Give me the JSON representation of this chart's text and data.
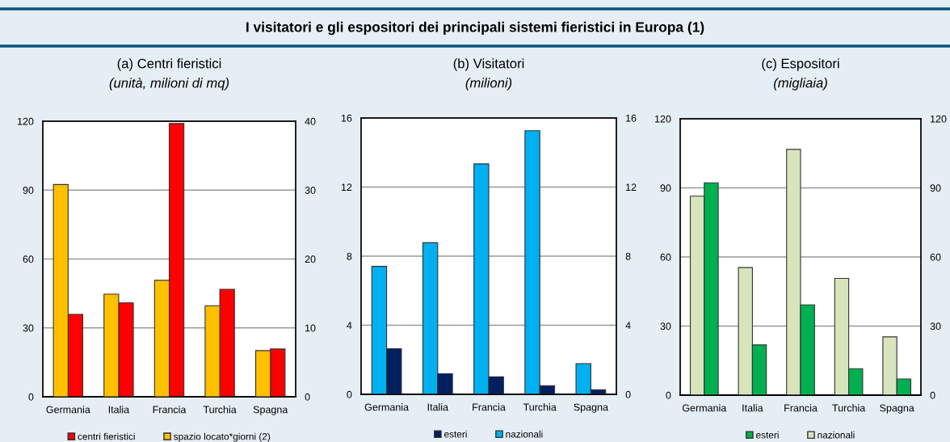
{
  "chart_data": [
    {
      "type": "other",
      "title": "I visitatori e gli espositori dei principali sistemi fieristici in Europa (1)"
    },
    {
      "type": "bar",
      "title": "(a) Centri fieristici",
      "subtitle": "(unità, milioni di mq)",
      "categories": [
        "Germania",
        "Italia",
        "Francia",
        "Turchia",
        "Spagna"
      ],
      "series": [
        {
          "name": "spazio locato*giorni (2)",
          "color": "#ffc000",
          "axis": "y2",
          "values": [
            30.8,
            14.9,
            16.9,
            13.2,
            6.7
          ]
        },
        {
          "name": "centri fieristici",
          "color": "#ff0000",
          "values": [
            35.9,
            40.9,
            119,
            46.8,
            20.8
          ]
        }
      ],
      "ylim": [
        0,
        120
      ],
      "yticks": [
        0,
        30,
        60,
        90,
        120
      ],
      "y2lim": [
        0,
        40
      ],
      "y2ticks": [
        0,
        10,
        20,
        30,
        40
      ],
      "grid": "y",
      "legend": "bottom"
    },
    {
      "type": "bar",
      "title": "(b) Visitatori",
      "subtitle": "(milioni)",
      "categories": [
        "Germania",
        "Italia",
        "Francia",
        "Turchia",
        "Spagna"
      ],
      "series": [
        {
          "name": "nazionali",
          "color": "#00b0f0",
          "values": [
            7.41,
            8.78,
            13.34,
            15.26,
            1.78
          ]
        },
        {
          "name": "esteri",
          "color": "#002060",
          "values": [
            2.64,
            1.19,
            1.01,
            0.5,
            0.27
          ]
        }
      ],
      "ylim": [
        0,
        16
      ],
      "yticks": [
        0,
        4,
        8,
        12,
        16
      ],
      "y2lim": [
        0,
        16
      ],
      "y2ticks": [
        0,
        4,
        8,
        12,
        16
      ],
      "grid": "y",
      "legend": "bottom"
    },
    {
      "type": "bar",
      "title": "(c) Espositori",
      "subtitle": "(migliaia)",
      "categories": [
        "Germania",
        "Italia",
        "Francia",
        "Turchia",
        "Spagna"
      ],
      "series": [
        {
          "name": "nazionali",
          "color": "#d8e4bc",
          "values": [
            86.4,
            55.4,
            106.7,
            50.7,
            25.3
          ]
        },
        {
          "name": "esteri",
          "color": "#00b050",
          "values": [
            92.2,
            21.8,
            39.2,
            11.5,
            7.0
          ]
        }
      ],
      "ylim": [
        0,
        120
      ],
      "yticks": [
        0,
        30,
        60,
        90,
        120
      ],
      "y2lim": [
        0,
        120
      ],
      "y2ticks": [
        0,
        30,
        60,
        90,
        120
      ],
      "grid": "y",
      "legend": "bottom"
    }
  ]
}
